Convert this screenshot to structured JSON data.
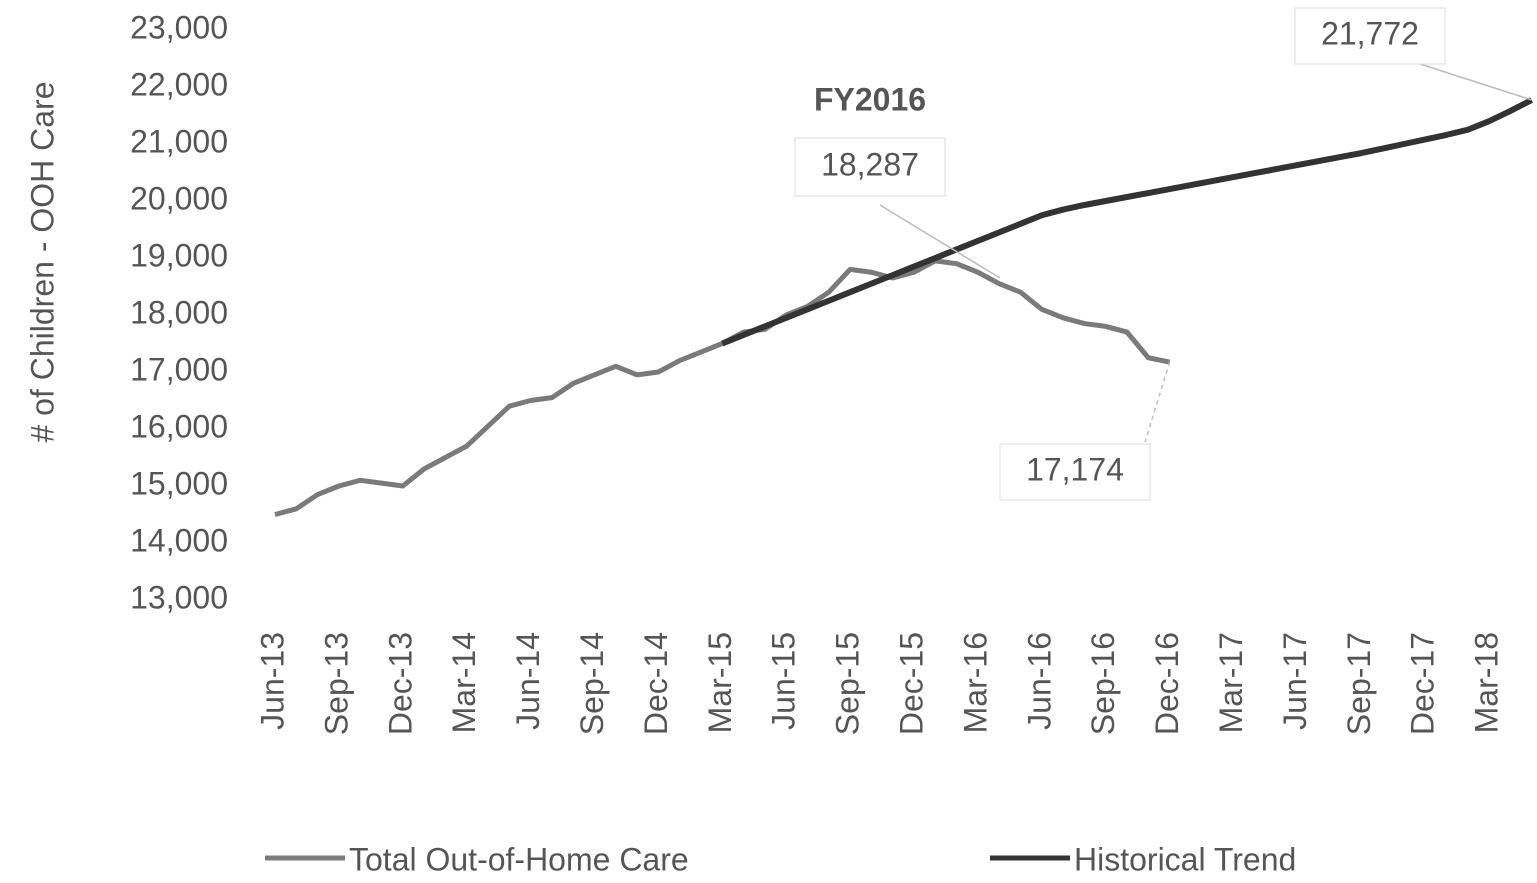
{
  "chart_data": {
    "type": "line",
    "y_label": "# of Children - OOH Care",
    "annotations": [
      "FY2016",
      "18,287"
    ],
    "categories": [
      "Jun-13",
      null,
      null,
      "Sep-13",
      null,
      null,
      "Dec-13",
      null,
      null,
      "Mar-14",
      null,
      null,
      "Jun-14",
      null,
      null,
      "Sep-14",
      null,
      null,
      "Dec-14",
      null,
      null,
      "Mar-15",
      null,
      null,
      "Jun-15",
      null,
      null,
      "Sep-15",
      null,
      null,
      "Dec-15",
      null,
      null,
      "Mar-16",
      null,
      null,
      "Jun-16",
      null,
      null,
      "Sep-16",
      null,
      null,
      "Dec-16",
      null,
      null,
      "Mar-17",
      null,
      null,
      "Jun-17",
      null,
      null,
      "Sep-17",
      null,
      null,
      "Dec-17",
      null,
      null,
      "Mar-18",
      null,
      null
    ],
    "series": [
      {
        "name": "Total Out-of-Home Care",
        "color": "#7a7a7a",
        "values": [
          14500,
          14600,
          14850,
          15000,
          15100,
          15050,
          15000,
          15300,
          15500,
          15700,
          16050,
          16400,
          16500,
          16550,
          16800,
          16950,
          17100,
          16950,
          17000,
          17200,
          17350,
          17500,
          17700,
          17750,
          18000,
          18150,
          18400,
          18800,
          18750,
          18650,
          18750,
          18950,
          18900,
          18750,
          18550,
          18400,
          18100,
          17950,
          17850,
          17800,
          17700,
          17250,
          17174,
          null,
          null,
          null,
          null,
          null,
          null,
          null,
          null,
          null,
          null,
          null,
          null,
          null,
          null,
          null,
          null,
          null
        ],
        "value_labels": [
          null,
          null,
          null,
          null,
          null,
          null,
          null,
          null,
          null,
          null,
          null,
          null,
          null,
          null,
          null,
          null,
          null,
          null,
          null,
          null,
          null,
          null,
          null,
          null,
          null,
          null,
          null,
          null,
          null,
          null,
          null,
          null,
          null,
          null,
          null,
          null,
          null,
          null,
          null,
          null,
          null,
          null,
          "17,174",
          null,
          null,
          null,
          null,
          null,
          null,
          null,
          null,
          null,
          null,
          null,
          null,
          null,
          null,
          null,
          null,
          null
        ]
      },
      {
        "name": "Historical Trend",
        "color": "#333333",
        "values": [
          null,
          null,
          null,
          null,
          null,
          null,
          null,
          null,
          null,
          null,
          null,
          null,
          null,
          null,
          null,
          null,
          null,
          null,
          null,
          null,
          null,
          17500,
          17650,
          17800,
          17950,
          18100,
          18250,
          18400,
          18550,
          18700,
          18850,
          19000,
          19150,
          19300,
          19450,
          19600,
          19750,
          19850,
          19930,
          20000,
          20070,
          20140,
          20210,
          20280,
          20350,
          20420,
          20490,
          20560,
          20630,
          20700,
          20770,
          20840,
          20920,
          21000,
          21080,
          21160,
          21250,
          21400,
          21580,
          21772
        ],
        "value_labels": [
          null,
          null,
          null,
          null,
          null,
          null,
          null,
          null,
          null,
          null,
          null,
          null,
          null,
          null,
          null,
          null,
          null,
          null,
          null,
          null,
          null,
          null,
          null,
          null,
          null,
          null,
          null,
          null,
          null,
          null,
          null,
          null,
          null,
          null,
          null,
          null,
          null,
          null,
          null,
          null,
          null,
          null,
          null,
          null,
          null,
          null,
          null,
          null,
          null,
          null,
          null,
          null,
          null,
          null,
          null,
          null,
          null,
          null,
          null,
          "21,772"
        ]
      }
    ],
    "ylim": [
      13000,
      23000
    ],
    "yticks": [
      {
        "value": 13000,
        "label": "13,000"
      },
      {
        "value": 14000,
        "label": "14,000"
      },
      {
        "value": 15000,
        "label": "15,000"
      },
      {
        "value": 16000,
        "label": "16,000"
      },
      {
        "value": 17000,
        "label": "17,000"
      },
      {
        "value": 18000,
        "label": "18,000"
      },
      {
        "value": 19000,
        "label": "19,000"
      },
      {
        "value": 20000,
        "label": "20,000"
      },
      {
        "value": 21000,
        "label": "21,000"
      },
      {
        "value": 22000,
        "label": "22,000"
      },
      {
        "value": 23000,
        "label": "23,000"
      }
    ],
    "grid": false,
    "legend": "bottom"
  }
}
